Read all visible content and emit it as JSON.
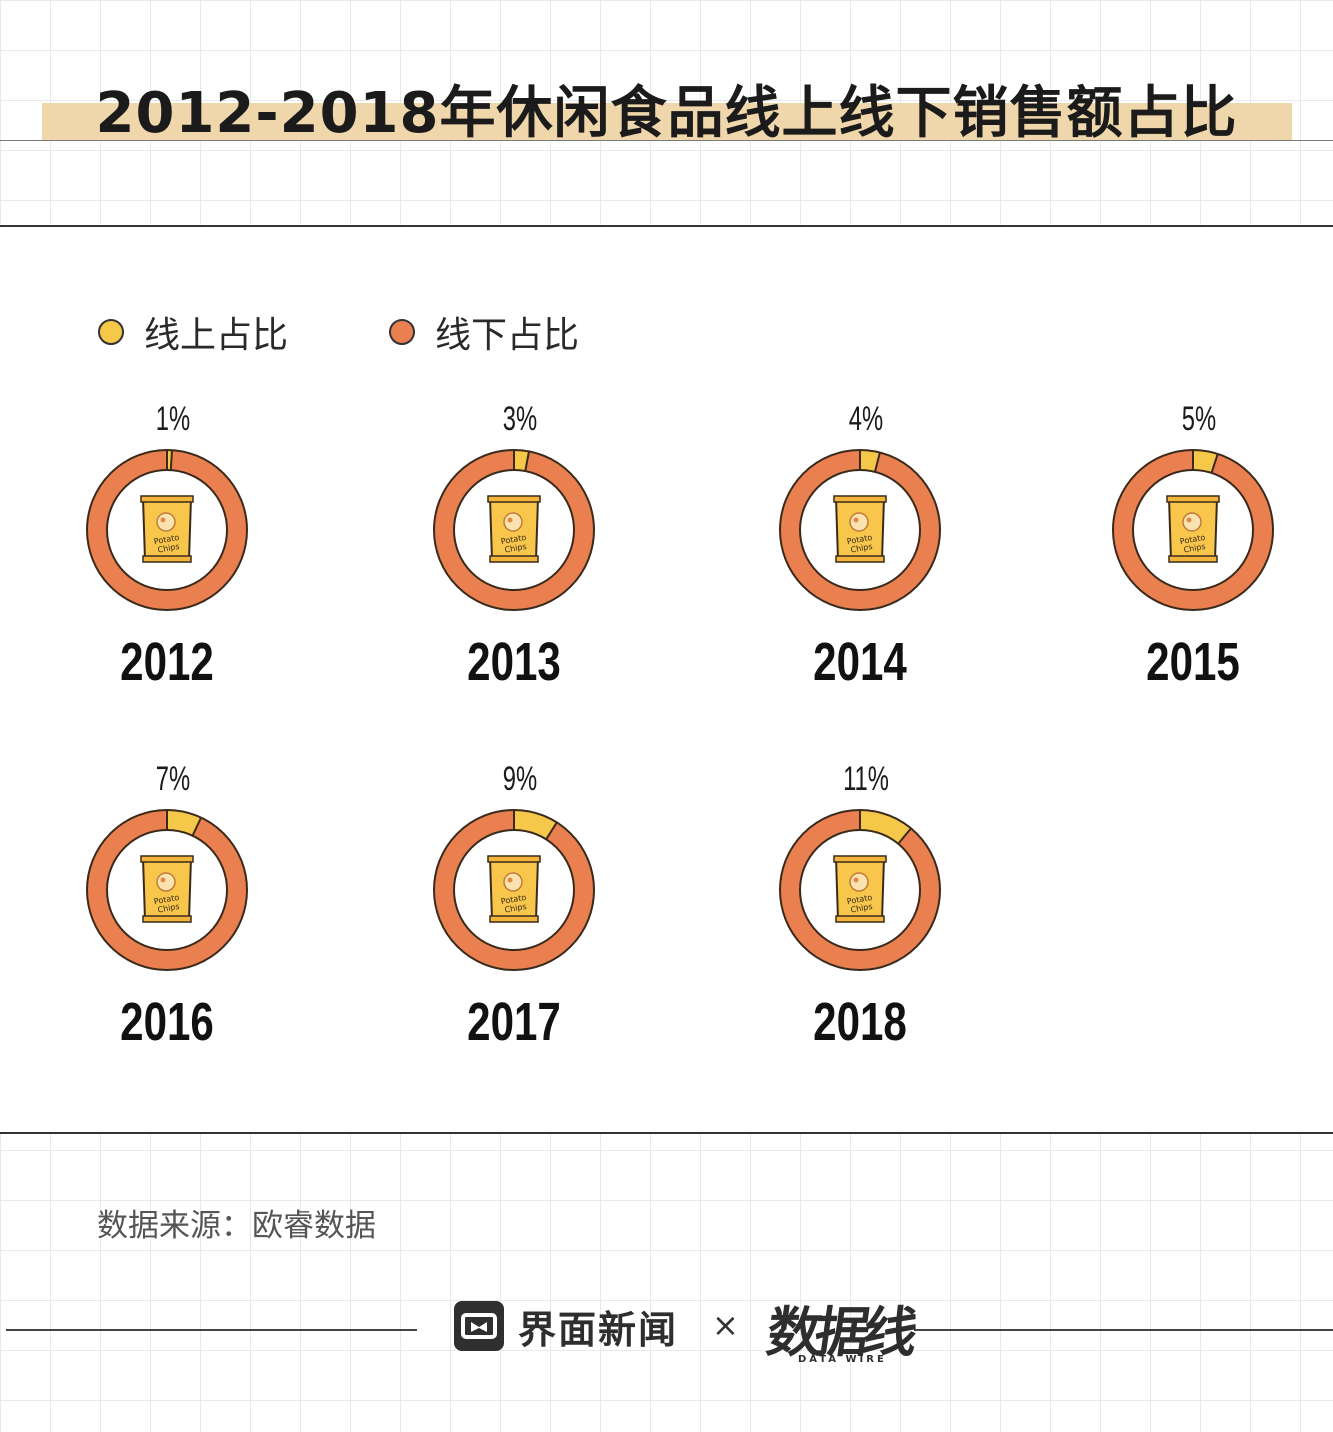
{
  "title": "2012-2018年休闲食品线上线下销售额占比",
  "source": "数据来源：欧睿数据",
  "footer": {
    "brand": "界面新闻",
    "separator": "×",
    "logo": "数据线",
    "logo_sub": "DATA WIRE"
  },
  "chip_bag": {
    "line1": "Potato",
    "line2": "Chips"
  },
  "colors": {
    "online": "#f5c84a",
    "offline": "#ea8050",
    "stroke": "#3a2a1c",
    "title_band": "#efd7ab"
  },
  "chart_data": {
    "type": "pie",
    "variant": "donut",
    "title": "2012-2018年休闲食品线上线下销售额占比",
    "legend": {
      "position": "top-left",
      "entries": [
        "线上占比",
        "线下占比"
      ]
    },
    "categories": [
      "2012",
      "2013",
      "2014",
      "2015",
      "2016",
      "2017",
      "2018"
    ],
    "series": [
      {
        "name": "线上占比",
        "color": "#f5c84a",
        "values": [
          1,
          3,
          4,
          5,
          7,
          9,
          11
        ]
      },
      {
        "name": "线下占比",
        "color": "#ea8050",
        "values": [
          99,
          97,
          96,
          95,
          93,
          91,
          89
        ]
      }
    ],
    "value_labels": [
      "1%",
      "3%",
      "4%",
      "5%",
      "7%",
      "9%",
      "11%"
    ],
    "units": "%"
  }
}
